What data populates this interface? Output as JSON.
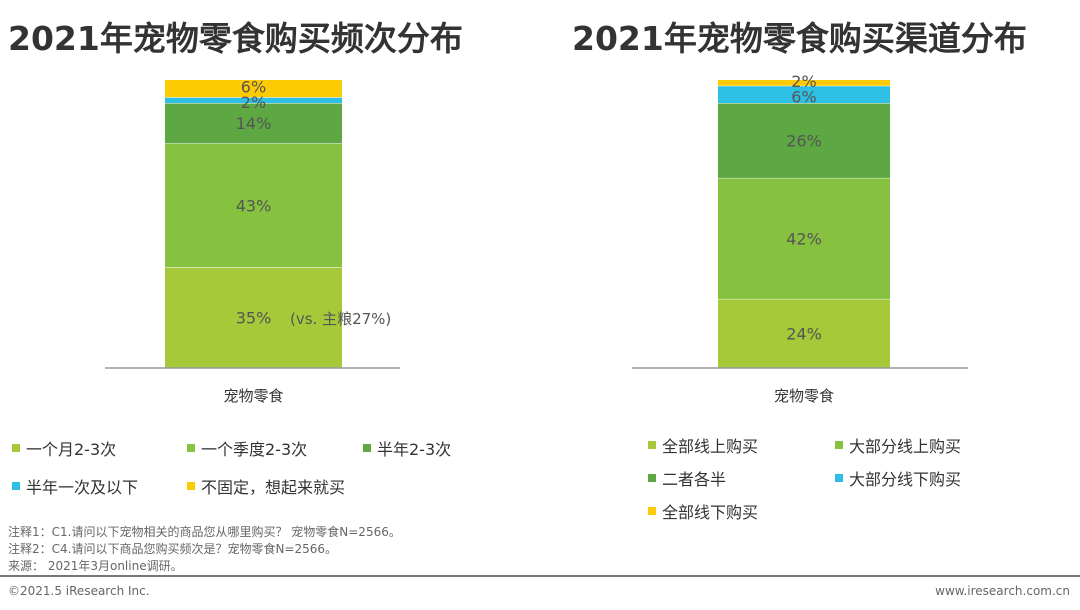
{
  "chart_data": [
    {
      "type": "bar",
      "stacked": true,
      "title": "2021年宠物零食购买频次分布",
      "categories": [
        "宠物零食"
      ],
      "series": [
        {
          "name": "一个月2-3次",
          "values": [
            35
          ],
          "label": "35%",
          "color": "#a5c939"
        },
        {
          "name": "一个季度2-3次",
          "values": [
            43
          ],
          "label": "43%",
          "color": "#86c240"
        },
        {
          "name": "半年2-3次",
          "values": [
            14
          ],
          "label": "14%",
          "color": "#5da843"
        },
        {
          "name": "半年一次及以下",
          "values": [
            2
          ],
          "label": "2%",
          "color": "#2ec0e4"
        },
        {
          "name": "不固定，想起来就买",
          "values": [
            6
          ],
          "label": "6%",
          "color": "#fdcb04"
        }
      ],
      "annotation": "(vs. 主粮27%)",
      "ylim": [
        0,
        100
      ]
    },
    {
      "type": "bar",
      "stacked": true,
      "title": "2021年宠物零食购买渠道分布",
      "categories": [
        "宠物零食"
      ],
      "series": [
        {
          "name": "全部线上购买",
          "values": [
            24
          ],
          "label": "24%",
          "color": "#a5c939"
        },
        {
          "name": "大部分线上购买",
          "values": [
            42
          ],
          "label": "42%",
          "color": "#86c240"
        },
        {
          "name": "二者各半",
          "values": [
            26
          ],
          "label": "26%",
          "color": "#5da843"
        },
        {
          "name": "大部分线下购买",
          "values": [
            6
          ],
          "label": "6%",
          "color": "#2ec0e4"
        },
        {
          "name": "全部线下购买",
          "values": [
            2
          ],
          "label": "2%",
          "color": "#fdcb04"
        }
      ],
      "ylim": [
        0,
        100
      ]
    }
  ],
  "notes": [
    "注释1：C1.请问以下宠物相关的商品您从哪里购买？ 宠物零食N=2566。",
    "注释2：C4.请问以下商品您购买频次是？宠物零食N=2566。",
    "来源： 2021年3月online调研。"
  ],
  "footer": {
    "left": "©2021.5 iResearch Inc.",
    "right": "www.iresearch.com.cn"
  }
}
